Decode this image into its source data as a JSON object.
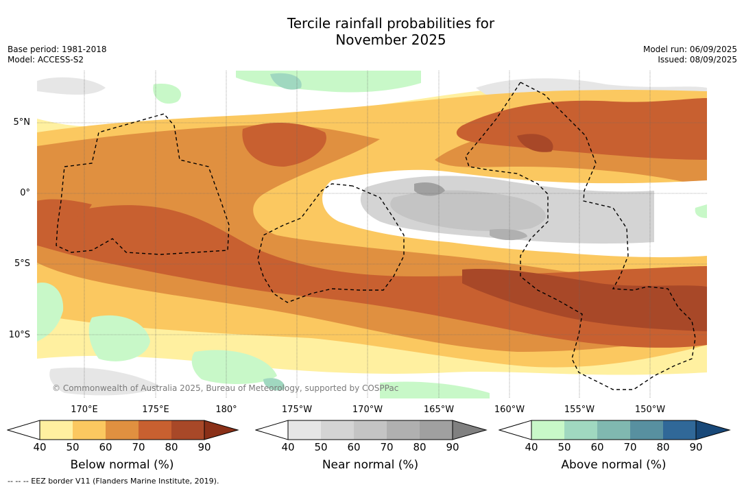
{
  "title_line1": "Tercile rainfall probabilities for",
  "title_line2": "November 2025",
  "base_period": "Base period: 1981-2018",
  "model": "Model: ACCESS-S2",
  "model_run": "Model run: 06/09/2025",
  "issued": "Issued: 08/09/2025",
  "lat_labels": [
    "5°N",
    "0°",
    "5°S",
    "10°S"
  ],
  "lon_labels": [
    "170°E",
    "175°E",
    "180°",
    "175°W",
    "170°W",
    "165°W",
    "160°W",
    "155°W",
    "150°W"
  ],
  "copyright": "© Commonwealth of Australia 2025, Bureau of Meteorology, supported by COSPPac",
  "colorbars": {
    "below": {
      "label": "Below normal (%)",
      "ticks": [
        "40",
        "50",
        "60",
        "70",
        "80",
        "90"
      ],
      "colors": [
        "#fff0a0",
        "#fbc860",
        "#e09040",
        "#c86030",
        "#a84828",
        "#8a3018"
      ]
    },
    "near": {
      "label": "Near normal (%)",
      "ticks": [
        "40",
        "50",
        "60",
        "70",
        "80",
        "90"
      ],
      "colors": [
        "#e6e6e6",
        "#d4d4d4",
        "#c4c4c4",
        "#b0b0b0",
        "#a0a0a0",
        "#808080"
      ]
    },
    "above": {
      "label": "Above normal (%)",
      "ticks": [
        "40",
        "50",
        "60",
        "70",
        "80",
        "90"
      ],
      "colors": [
        "#c8f8c8",
        "#a0d8c0",
        "#80b8b0",
        "#5890a0",
        "#306898",
        "#184878"
      ]
    }
  },
  "footnote": "-- -- -- EEZ border V11 (Flanders Marine Institute, 2019)."
}
